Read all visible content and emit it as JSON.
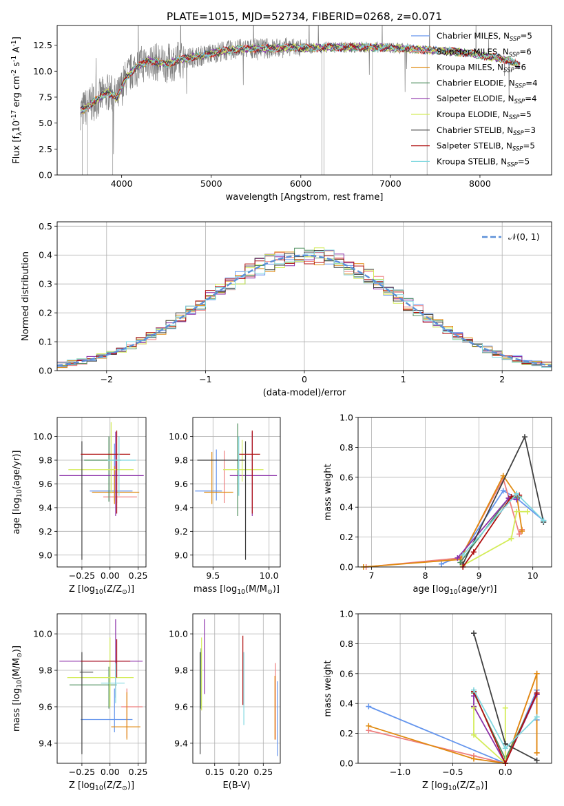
{
  "colors": {
    "Chabrier MILES": "#6495ed",
    "Salpeter MILES": "#ee7e7e",
    "Kroupa MILES": "#e08a10",
    "Chabrier ELODIE": "#4f8f5f",
    "Salpeter ELODIE": "#8b2fa8",
    "Kroupa ELODIE": "#d4ec5a",
    "Chabrier STELIB": "#404040",
    "Salpeter STELIB": "#b01010",
    "Kroupa STELIB": "#80d8e0",
    "normal_curve": "#5b8fd8",
    "data_spectrum": "#808080"
  },
  "chart_data": [
    {
      "type": "line",
      "title": "PLATE=1015, MJD=52734, FIBERID=0268, z=0.071",
      "xlabel": "wavelength [Angstrom, rest frame]",
      "ylabel": "Flux [f$_\\lambda$10$^{-17}$ erg cm$^{-2}$ s$^{-1}$ A$^{-1}$]",
      "xlim": [
        3280,
        8800
      ],
      "ylim": [
        0,
        14.4
      ],
      "xticks": [
        "4000",
        "5000",
        "6000",
        "7000",
        "8000"
      ],
      "yticks": [
        "0.0",
        "2.5",
        "5.0",
        "7.5",
        "10.0",
        "12.5"
      ],
      "legend_position": "right",
      "legend": [
        "Chabrier MILES, N$_{SSP}$=5",
        "Salpeter MILES, N$_{SSP}$=6",
        "Kroupa MILES, N$_{SSP}$=6",
        "Chabrier ELODIE, N$_{SSP}$=4",
        "Salpeter ELODIE, N$_{SSP}$=4",
        "Kroupa ELODIE, N$_{SSP}$=5",
        "Chabrier STELIB, N$_{SSP}$=3",
        "Salpeter STELIB, N$_{SSP}$=5",
        "Kroupa STELIB, N$_{SSP}$=5"
      ],
      "model_continuum": {
        "x": [
          3550,
          3650,
          3750,
          3850,
          3950,
          4050,
          4150,
          4300,
          4500,
          4700,
          4900,
          5100,
          5300,
          5500,
          5700,
          5900,
          6100,
          6300,
          6500,
          6700,
          6900,
          7100,
          7300,
          7500,
          7700,
          7900,
          8100,
          8300,
          8450
        ],
        "y": [
          6.2,
          6.8,
          7.4,
          8.0,
          7.4,
          9.4,
          10.3,
          11.0,
          10.7,
          11.2,
          11.5,
          11.9,
          12.1,
          12.2,
          12.2,
          12.3,
          12.2,
          12.3,
          12.3,
          12.3,
          12.3,
          12.2,
          12.1,
          12.0,
          11.9,
          11.7,
          11.4,
          11.1,
          10.5
        ]
      }
    },
    {
      "type": "area",
      "xlabel": "(data-model)/error",
      "ylabel": "Normed distribution",
      "xlim": [
        -2.5,
        2.5
      ],
      "ylim": [
        0,
        0.515
      ],
      "xticks": [
        "−2",
        "−1",
        "0",
        "1",
        "2"
      ],
      "yticks": [
        "0.0",
        "0.1",
        "0.2",
        "0.3",
        "0.4",
        "0.5"
      ],
      "legend_position": "top-right",
      "legend": [
        "𝒩(0, 1)"
      ],
      "grid": true
    },
    {
      "type": "scatter",
      "xlabel": "Z [log$_{10}$(Z/Z$_\\odot$)]",
      "ylabel": "age  [log$_{10}$(age/yr)]",
      "xlim": [
        -0.47,
        0.32
      ],
      "ylim": [
        8.9,
        10.16
      ],
      "xticks": [
        "−0.25",
        "0.00",
        "0.25"
      ],
      "yticks": [
        "9.0",
        "9.2",
        "9.4",
        "9.6",
        "9.8",
        "10.0"
      ],
      "grid": true,
      "points": [
        {
          "model": "Chabrier MILES",
          "x": 0.04,
          "xerr": [
            0.22,
            0.16
          ],
          "y": 9.54,
          "yerr": [
            0.08,
            0.4
          ]
        },
        {
          "model": "Salpeter MILES",
          "x": 0.06,
          "xerr": [
            0.12,
            0.18
          ],
          "y": 9.49,
          "yerr": [
            0.05,
            0.3
          ]
        },
        {
          "model": "Kroupa MILES",
          "x": 0.04,
          "xerr": [
            0.2,
            0.22
          ],
          "y": 9.53,
          "yerr": [
            0.1,
            0.22
          ]
        },
        {
          "model": "Chabrier ELODIE",
          "x": -0.01,
          "xerr": [
            0.22,
            0.11
          ],
          "y": 9.8,
          "yerr": [
            0.35,
            0.2
          ]
        },
        {
          "model": "Salpeter ELODIE",
          "x": 0.05,
          "xerr": [
            0.5,
            0.25
          ],
          "y": 9.67,
          "yerr": [
            0.34,
            0.37
          ]
        },
        {
          "model": "Kroupa ELODIE",
          "x": 0.01,
          "xerr": [
            0.38,
            0.2
          ],
          "y": 9.72,
          "yerr": [
            0.2,
            0.4
          ]
        },
        {
          "model": "Chabrier STELIB",
          "x": -0.25,
          "xerr": [
            0.0,
            0.0
          ],
          "y": 9.8,
          "yerr": [
            0.84,
            0.16
          ]
        },
        {
          "model": "Salpeter STELIB",
          "x": 0.06,
          "xerr": [
            0.32,
            0.12
          ],
          "y": 9.85,
          "yerr": [
            0.5,
            0.2
          ]
        },
        {
          "model": "Kroupa STELIB",
          "x": 0.08,
          "xerr": [
            0.1,
            0.15
          ],
          "y": 9.8,
          "yerr": [
            0.3,
            0.2
          ]
        }
      ]
    },
    {
      "type": "scatter",
      "xlabel": "mass [log$_{10}$(M/M$_\\odot$)]",
      "xlim": [
        9.32,
        10.1
      ],
      "ylim": [
        8.9,
        10.16
      ],
      "xticks": [
        "9.5",
        "10.0"
      ],
      "yticks": [
        "9.0",
        "9.2",
        "9.4",
        "9.6",
        "9.8",
        "10.0"
      ],
      "grid": true,
      "points": [
        {
          "model": "Chabrier MILES",
          "x": 9.53,
          "xerr": [
            0.19,
            0.05
          ],
          "y": 9.54,
          "yerr": [
            0.08,
            0.35
          ]
        },
        {
          "model": "Salpeter MILES",
          "x": 9.6,
          "xerr": [
            0.0,
            0.0
          ],
          "y": 9.49,
          "yerr": [
            0.05,
            0.39
          ]
        },
        {
          "model": "Kroupa MILES",
          "x": 9.49,
          "xerr": [
            0.07,
            0.19
          ],
          "y": 9.53,
          "yerr": [
            0.1,
            0.34
          ]
        },
        {
          "model": "Chabrier ELODIE",
          "x": 9.72,
          "xerr": [
            0.0,
            0.0
          ],
          "y": 9.8,
          "yerr": [
            0.47,
            0.31
          ]
        },
        {
          "model": "Salpeter ELODIE",
          "x": 9.85,
          "xerr": [
            0.2,
            0.22
          ],
          "y": 9.67,
          "yerr": [
            0.34,
            0.37
          ]
        },
        {
          "model": "Kroupa ELODIE",
          "x": 9.76,
          "xerr": [
            0.17,
            0.19
          ],
          "y": 9.72,
          "yerr": [
            0.1,
            0.25
          ]
        },
        {
          "model": "Chabrier STELIB",
          "x": 9.79,
          "xerr": [
            0.43,
            0.0
          ],
          "y": 9.8,
          "yerr": [
            0.84,
            0.16
          ]
        },
        {
          "model": "Salpeter STELIB",
          "x": 9.85,
          "xerr": [
            0.12,
            0.07
          ],
          "y": 9.85,
          "yerr": [
            0.5,
            0.2
          ]
        },
        {
          "model": "Kroupa STELIB",
          "x": 9.73,
          "xerr": [
            0.0,
            0.0
          ],
          "y": 9.8,
          "yerr": [
            0.3,
            0.2
          ]
        }
      ]
    },
    {
      "type": "line",
      "xlabel": "age  [log$_{10}$(age/yr)]",
      "ylabel": "mass weight",
      "xlim": [
        6.75,
        10.35
      ],
      "ylim": [
        0,
        1.0
      ],
      "xticks": [
        "7",
        "8",
        "9",
        "10"
      ],
      "yticks": [
        "0.0",
        "0.2",
        "0.4",
        "0.6",
        "0.8",
        "1.0"
      ],
      "grid": true,
      "series": [
        {
          "model": "Chabrier MILES",
          "x": [
            8.3,
            8.65,
            9.45,
            9.7,
            10.2
          ],
          "y": [
            0.02,
            0.07,
            0.51,
            0.46,
            0.31
          ]
        },
        {
          "model": "Salpeter MILES",
          "x": [
            6.9,
            8.65,
            9.45,
            9.75,
            9.8
          ],
          "y": [
            0.0,
            0.06,
            0.59,
            0.22,
            0.25
          ]
        },
        {
          "model": "Kroupa MILES",
          "x": [
            6.85,
            8.65,
            9.45,
            9.7,
            9.8
          ],
          "y": [
            0.0,
            0.05,
            0.61,
            0.48,
            0.24
          ]
        },
        {
          "model": "Chabrier ELODIE",
          "x": [
            8.65,
            9.55,
            9.75
          ],
          "y": [
            0.03,
            0.46,
            0.47
          ]
        },
        {
          "model": "Salpeter ELODIE",
          "x": [
            8.6,
            9.55,
            9.7
          ],
          "y": [
            0.06,
            0.46,
            0.45
          ]
        },
        {
          "model": "Kroupa ELODIE",
          "x": [
            8.7,
            9.6,
            9.7,
            9.9
          ],
          "y": [
            0.01,
            0.19,
            0.37,
            0.37
          ]
        },
        {
          "model": "Chabrier STELIB",
          "x": [
            8.7,
            9.85,
            10.2
          ],
          "y": [
            0.02,
            0.87,
            0.3
          ]
        },
        {
          "model": "Salpeter STELIB",
          "x": [
            8.7,
            8.9,
            9.6,
            9.75
          ],
          "y": [
            0.0,
            0.1,
            0.47,
            0.48
          ]
        },
        {
          "model": "Kroupa STELIB",
          "x": [
            8.7,
            9.7,
            10.2
          ],
          "y": [
            0.08,
            0.49,
            0.31
          ]
        }
      ]
    },
    {
      "type": "scatter",
      "xlabel": "Z [log$_{10}$(Z/Z$_\\odot$)]",
      "ylabel": "mass [log$_{10}$(M/M$_\\odot$)]",
      "xlim": [
        -0.47,
        0.32
      ],
      "ylim": [
        9.29,
        10.11
      ],
      "xticks": [
        "−0.25",
        "0.00",
        "0.25"
      ],
      "yticks": [
        "9.4",
        "9.6",
        "9.8",
        "10.0"
      ],
      "grid": true,
      "points": [
        {
          "model": "Chabrier MILES",
          "x": 0.04,
          "xerr": [
            0.3,
            0.16
          ],
          "y": 9.53,
          "yerr": [
            0.07,
            0.17
          ]
        },
        {
          "model": "Salpeter MILES",
          "x": 0.15,
          "xerr": [
            0.05,
            0.14
          ],
          "y": 9.6,
          "yerr": [
            0.17,
            0.1
          ]
        },
        {
          "model": "Kroupa MILES",
          "x": 0.15,
          "xerr": [
            0.14,
            0.12
          ],
          "y": 9.49,
          "yerr": [
            0.07,
            0.19
          ]
        },
        {
          "model": "Chabrier ELODIE",
          "x": -0.01,
          "xerr": [
            0.35,
            0.07
          ],
          "y": 9.72,
          "yerr": [
            0.13,
            0.1
          ]
        },
        {
          "model": "Salpeter ELODIE",
          "x": 0.05,
          "xerr": [
            0.5,
            0.24
          ],
          "y": 9.85,
          "yerr": [
            0.2,
            0.23
          ]
        },
        {
          "model": "Kroupa ELODIE",
          "x": 0.0,
          "xerr": [
            0.38,
            0.21
          ],
          "y": 9.76,
          "yerr": [
            0.16,
            0.22
          ]
        },
        {
          "model": "Chabrier STELIB",
          "x": -0.25,
          "xerr": [
            0.02,
            0.1
          ],
          "y": 9.79,
          "yerr": [
            0.45,
            0.11
          ]
        },
        {
          "model": "Salpeter STELIB",
          "x": 0.06,
          "xerr": [
            0.32,
            0.12
          ],
          "y": 9.85,
          "yerr": [
            0.09,
            0.12
          ]
        },
        {
          "model": "Kroupa STELIB",
          "x": 0.05,
          "xerr": [
            0.13,
            0.08
          ],
          "y": 9.73,
          "yerr": [
            0.11,
            0.11
          ]
        }
      ]
    },
    {
      "type": "scatter",
      "xlabel": "E(B-V)",
      "xlim": [
        0.105,
        0.285
      ],
      "ylim": [
        9.29,
        10.11
      ],
      "xticks": [
        "0.15",
        "0.20",
        "0.25"
      ],
      "yticks": [
        "9.4",
        "9.6",
        "9.8",
        "10.0"
      ],
      "grid": true,
      "points": [
        {
          "model": "Chabrier MILES",
          "x": 0.279,
          "y": 9.53,
          "yerr": [
            0.2,
            0.21
          ]
        },
        {
          "model": "Salpeter MILES",
          "x": 0.275,
          "y": 9.6,
          "yerr": [
            0.18,
            0.24
          ]
        },
        {
          "model": "Kroupa MILES",
          "x": 0.274,
          "y": 9.49,
          "yerr": [
            0.07,
            0.28
          ]
        },
        {
          "model": "Chabrier ELODIE",
          "x": 0.122,
          "y": 9.72,
          "yerr": [
            0.13,
            0.2
          ]
        },
        {
          "model": "Salpeter ELODIE",
          "x": 0.129,
          "y": 9.85,
          "yerr": [
            0.18,
            0.23
          ]
        },
        {
          "model": "Kroupa ELODIE",
          "x": 0.123,
          "y": 9.76,
          "yerr": [
            0.18,
            0.22
          ]
        },
        {
          "model": "Chabrier STELIB",
          "x": 0.12,
          "y": 9.63,
          "yerr": [
            0.29,
            0.27
          ]
        },
        {
          "model": "Salpeter STELIB",
          "x": 0.208,
          "y": 9.8,
          "yerr": [
            0.19,
            0.19
          ]
        },
        {
          "model": "Kroupa STELIB",
          "x": 0.21,
          "y": 9.7,
          "yerr": [
            0.2,
            0.2
          ]
        }
      ]
    },
    {
      "type": "line",
      "xlabel": "Z [log$_{10}$(Z/Z$_\\odot$)]",
      "ylabel": "mass weight",
      "xlim": [
        -1.4,
        0.44
      ],
      "ylim": [
        0,
        1.0
      ],
      "xticks": [
        "−1.0",
        "−0.5",
        "0.0"
      ],
      "yticks": [
        "0.0",
        "0.2",
        "0.4",
        "0.6",
        "0.8",
        "1.0"
      ],
      "grid": true,
      "series": [
        {
          "model": "Chabrier MILES",
          "x": [
            -1.3,
            0.0,
            0.3,
            0.3
          ],
          "y": [
            0.38,
            0.0,
            0.49,
            0.29
          ]
        },
        {
          "model": "Salpeter MILES",
          "x": [
            -1.3,
            -0.3,
            0.0,
            0.3,
            0.3
          ],
          "y": [
            0.22,
            0.05,
            0.0,
            0.6,
            0.07
          ]
        },
        {
          "model": "Kroupa MILES",
          "x": [
            -1.3,
            -0.3,
            0.0,
            0.3,
            0.3
          ],
          "y": [
            0.25,
            0.03,
            0.0,
            0.6,
            0.07
          ]
        },
        {
          "model": "Chabrier ELODIE",
          "x": [
            -0.3,
            0.0,
            0.3
          ],
          "y": [
            0.47,
            0.03,
            0.46
          ]
        },
        {
          "model": "Salpeter ELODIE",
          "x": [
            -0.3,
            -0.3,
            0.0,
            0.3
          ],
          "y": [
            0.45,
            0.38,
            0.0,
            0.46
          ]
        },
        {
          "model": "Kroupa ELODIE",
          "x": [
            -0.3,
            -0.3,
            0.0,
            0.0
          ],
          "y": [
            0.37,
            0.19,
            0.0,
            0.37
          ]
        },
        {
          "model": "Chabrier STELIB",
          "x": [
            -0.3,
            0.0,
            0.3
          ],
          "y": [
            0.87,
            0.13,
            0.02
          ]
        },
        {
          "model": "Salpeter STELIB",
          "x": [
            -0.3,
            0.0,
            0.3
          ],
          "y": [
            0.48,
            0.0,
            0.47
          ]
        },
        {
          "model": "Kroupa STELIB",
          "x": [
            -0.3,
            0.0,
            0.3
          ],
          "y": [
            0.49,
            0.1,
            0.31
          ]
        }
      ]
    }
  ]
}
